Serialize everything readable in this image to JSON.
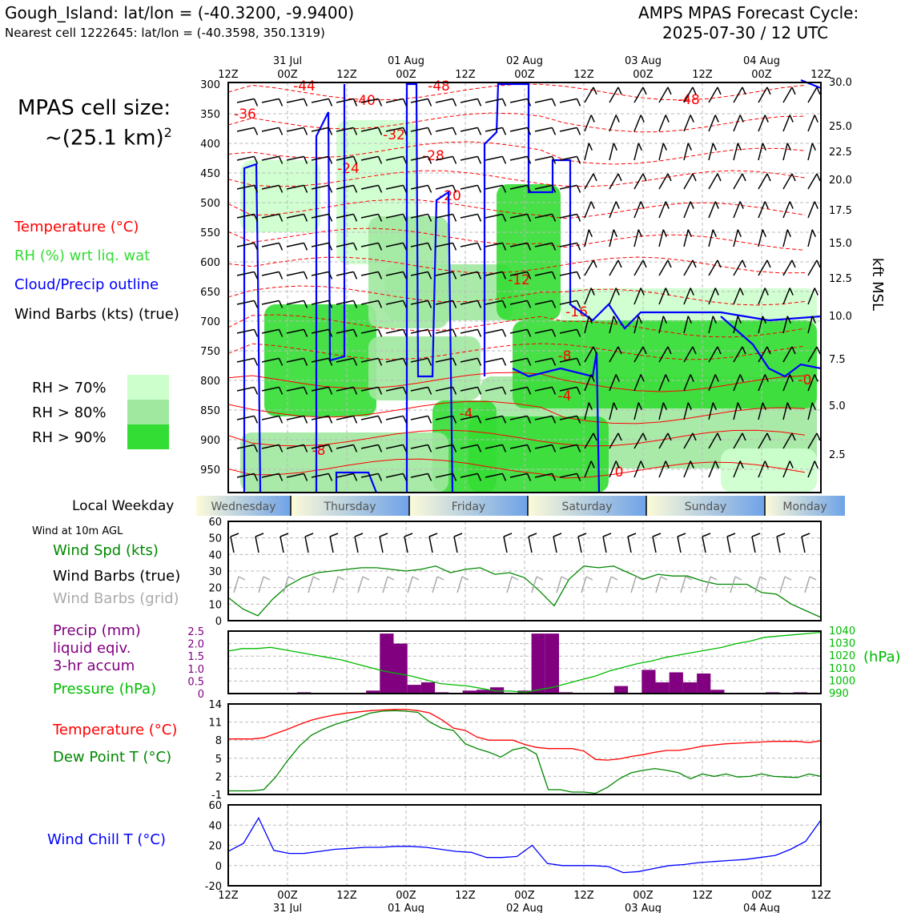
{
  "header": {
    "title_left": "Gough_Island: lat/lon = (-40.3200, -9.9400)",
    "subtitle_left": "Nearest cell 1222645: lat/lon = (-40.3598, 350.1319)",
    "title_right_line1": "AMPS MPAS Forecast Cycle:",
    "title_right_line2": "2025-07-30 / 12 UTC"
  },
  "cell_size": {
    "line1": "MPAS cell size:",
    "line2": "~(25.1 km)",
    "sup": "2"
  },
  "legend": {
    "temperature": "Temperature (°C)",
    "rh": "RH (%) wrt liq. wat",
    "cloud": "Cloud/Precip outline",
    "wind": "Wind Barbs (kts) (true)",
    "rh_levels": [
      {
        "label": "RH > 70%",
        "color": "#ccffcc"
      },
      {
        "label": "RH > 80%",
        "color": "#a0e8a0"
      },
      {
        "label": "RH > 90%",
        "color": "#33dd33"
      }
    ]
  },
  "weekday": {
    "label": "Local Weekday",
    "days": [
      "Wednesday",
      "Thursday",
      "Friday",
      "Saturday",
      "Sunday",
      "Monday"
    ]
  },
  "panel_labels": {
    "wind10m": "Wind at 10m AGL",
    "wind_spd": "Wind Spd (kts)",
    "barbs_true": "Wind Barbs (true)",
    "barbs_grid": "Wind Barbs (grid)",
    "precip1": "Precip (mm)",
    "precip2": "liquid eqiv.",
    "precip3": "3-hr accum",
    "pressure": "Pressure (hPa)",
    "hpa": "(hPa)",
    "temp": "Temperature (°C)",
    "dewpt": "Dew Point T (°C)",
    "windchill": "Wind Chill T (°C)",
    "kft": "kft MSL"
  },
  "colors": {
    "temperature": "#ff0000",
    "rh": "#33dd33",
    "cloud": "#0000ff",
    "wind": "#000000",
    "grid_barbs": "#aaaaaa",
    "precip": "#800080",
    "pressure": "#00bb00",
    "dewpoint": "#008800",
    "windchill": "#0000ff"
  },
  "chart_data": [
    {
      "type": "heatmap",
      "x_ticks": [
        "12Z",
        "00Z",
        "12Z",
        "00Z",
        "12Z",
        "00Z",
        "12Z",
        "00Z",
        "12Z",
        "00Z",
        "12Z"
      ],
      "x_dates": [
        "31 Jul",
        "01 Aug",
        "02 Aug",
        "03 Aug",
        "04 Aug"
      ],
      "y_ticks": [
        "300",
        "350",
        "400",
        "450",
        "500",
        "550",
        "600",
        "650",
        "700",
        "750",
        "800",
        "850",
        "900",
        "950"
      ],
      "y_right_ticks": [
        "30.0",
        "25.0",
        "22.5",
        "20.0",
        "17.5",
        "15.0",
        "12.5",
        "10.0",
        "7.5",
        "5.0",
        "2.5"
      ],
      "temperature_labels": [
        "-44",
        "-48",
        "-40",
        "-36",
        "-32",
        "-28",
        "-24",
        "-20",
        "-48",
        "-12",
        "-16",
        "-8",
        "-4",
        "-4",
        "-8",
        "0",
        "-0"
      ]
    },
    {
      "type": "line",
      "name": "wind10m",
      "y_ticks": [
        "0",
        "10",
        "20",
        "30",
        "40",
        "50",
        "60"
      ],
      "ylim": [
        0,
        60
      ],
      "values": [
        14,
        7,
        3,
        13,
        21,
        26,
        29,
        30,
        31,
        32,
        32,
        31,
        30,
        31,
        33,
        29,
        31,
        32,
        28,
        29,
        26,
        18,
        9,
        25,
        33,
        32,
        33,
        29,
        25,
        28,
        27,
        27,
        24,
        22,
        22,
        22,
        17,
        16,
        10,
        6,
        2
      ]
    },
    {
      "type": "bar",
      "name": "precip",
      "y_ticks": [
        "0",
        "0.5",
        "1.0",
        "1.5",
        "2.0",
        "2.5"
      ],
      "ylim": [
        0,
        2.5
      ],
      "values": [
        0,
        0,
        0,
        0,
        0,
        0.05,
        0,
        0,
        0,
        0,
        0.12,
        2.4,
        2.0,
        0.35,
        0.45,
        0.05,
        0,
        0.12,
        0.15,
        0.25,
        0,
        0.12,
        2.4,
        2.4,
        0.05,
        0,
        0,
        0,
        0.3,
        0,
        0.95,
        0.45,
        0.85,
        0.45,
        0.8,
        0.15,
        0,
        0,
        0,
        0.05,
        0,
        0.05,
        0
      ]
    },
    {
      "type": "line",
      "name": "pressure",
      "y_right_ticks": [
        "990",
        "1000",
        "1010",
        "1020",
        "1030",
        "1040"
      ],
      "ylim": [
        990,
        1040
      ],
      "values": [
        1024,
        1026,
        1026,
        1027,
        1025,
        1023,
        1021,
        1019,
        1017,
        1014,
        1011,
        1008,
        1006,
        1004,
        1001,
        998,
        997,
        996,
        994,
        992,
        992,
        991,
        993,
        995,
        998,
        1001,
        1004,
        1008,
        1011,
        1014,
        1016,
        1019,
        1021,
        1023,
        1025,
        1027,
        1030,
        1032,
        1035,
        1036,
        1037,
        1038,
        1039
      ]
    },
    {
      "type": "line",
      "name": "temperature_dewpoint",
      "y_ticks": [
        "-1",
        "2",
        "5",
        "8",
        "11",
        "14"
      ],
      "ylim": [
        -1,
        14
      ],
      "series": [
        {
          "name": "Temperature (°C)",
          "values": [
            8.2,
            8.2,
            8.2,
            8.4,
            9.1,
            9.8,
            10.6,
            11.3,
            11.8,
            12.2,
            12.5,
            12.7,
            12.9,
            13.0,
            13.1,
            13.1,
            12.9,
            12.5,
            11.4,
            10.0,
            9.6,
            8.5,
            8.0,
            8.0,
            8.0,
            7.3,
            6.8,
            6.6,
            6.6,
            6.6,
            6.2,
            4.8,
            4.7,
            4.9,
            5.3,
            5.6,
            6.0,
            6.3,
            6.3,
            6.6,
            7.0,
            7.2,
            7.4,
            7.5,
            7.6,
            7.7,
            7.8,
            7.8,
            7.8,
            7.6,
            7.9
          ]
        },
        {
          "name": "Dew Point T (°C)",
          "values": [
            -0.4,
            -0.4,
            -0.4,
            -0.2,
            1.9,
            4.6,
            7.0,
            8.8,
            9.8,
            10.6,
            11.2,
            11.8,
            12.5,
            12.8,
            12.9,
            12.8,
            12.6,
            11.0,
            10.0,
            9.6,
            7.4,
            6.6,
            6.0,
            5.2,
            6.4,
            6.8,
            5.7,
            -0.2,
            -0.2,
            -0.6,
            -0.6,
            -0.8,
            0.2,
            1.6,
            2.6,
            3.0,
            3.3,
            3.0,
            2.6,
            1.6,
            2.4,
            2.0,
            2.4,
            1.9,
            2.0,
            2.4,
            2.0,
            1.9,
            1.8,
            2.4,
            2.0
          ]
        }
      ]
    },
    {
      "type": "line",
      "name": "windchill",
      "y_ticks": [
        "-20",
        "0",
        "20",
        "40",
        "60"
      ],
      "ylim": [
        -20,
        60
      ],
      "values": [
        14,
        22,
        47,
        15,
        12,
        12,
        14,
        16,
        17,
        18,
        18,
        19,
        19,
        18,
        16,
        14,
        13,
        8,
        8,
        9,
        20,
        2,
        0,
        0,
        0,
        -1,
        -7,
        -6,
        -3,
        0,
        1,
        3,
        4,
        5,
        6,
        8,
        10,
        16,
        24,
        45
      ]
    }
  ]
}
